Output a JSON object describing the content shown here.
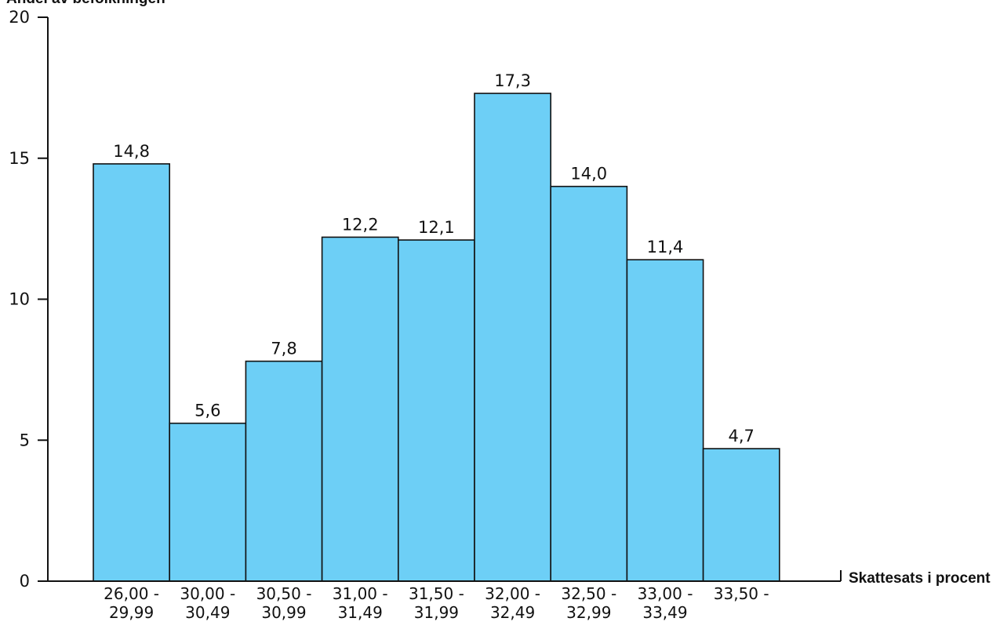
{
  "chart_data": {
    "type": "bar",
    "title": "",
    "ylabel": "Andel av befolkningen",
    "xlabel": "Skattesats i procent",
    "ylim": [
      0,
      20
    ],
    "yticks": [
      "0",
      "5",
      "10",
      "15",
      "20"
    ],
    "categories": [
      {
        "line1": "26,00 -",
        "line2": "29,99"
      },
      {
        "line1": "30,00 -",
        "line2": "30,49"
      },
      {
        "line1": "30,50 -",
        "line2": "30,99"
      },
      {
        "line1": "31,00 -",
        "line2": "31,49"
      },
      {
        "line1": "31,50 -",
        "line2": "31,99"
      },
      {
        "line1": "32,00 -",
        "line2": "32,49"
      },
      {
        "line1": "32,50 -",
        "line2": "32,99"
      },
      {
        "line1": "33,00 -",
        "line2": "33,49"
      },
      {
        "line1": "33,50 -",
        "line2": ""
      }
    ],
    "values": [
      14.8,
      5.6,
      7.8,
      12.2,
      12.1,
      17.3,
      14.0,
      11.4,
      4.7
    ],
    "data_labels": [
      "14,8",
      "5,6",
      "7,8",
      "12,2",
      "12,1",
      "17,3",
      "14,0",
      "11,4",
      "4,7"
    ],
    "bar_color": "#6dcff6",
    "grid": false,
    "legend": "none"
  }
}
